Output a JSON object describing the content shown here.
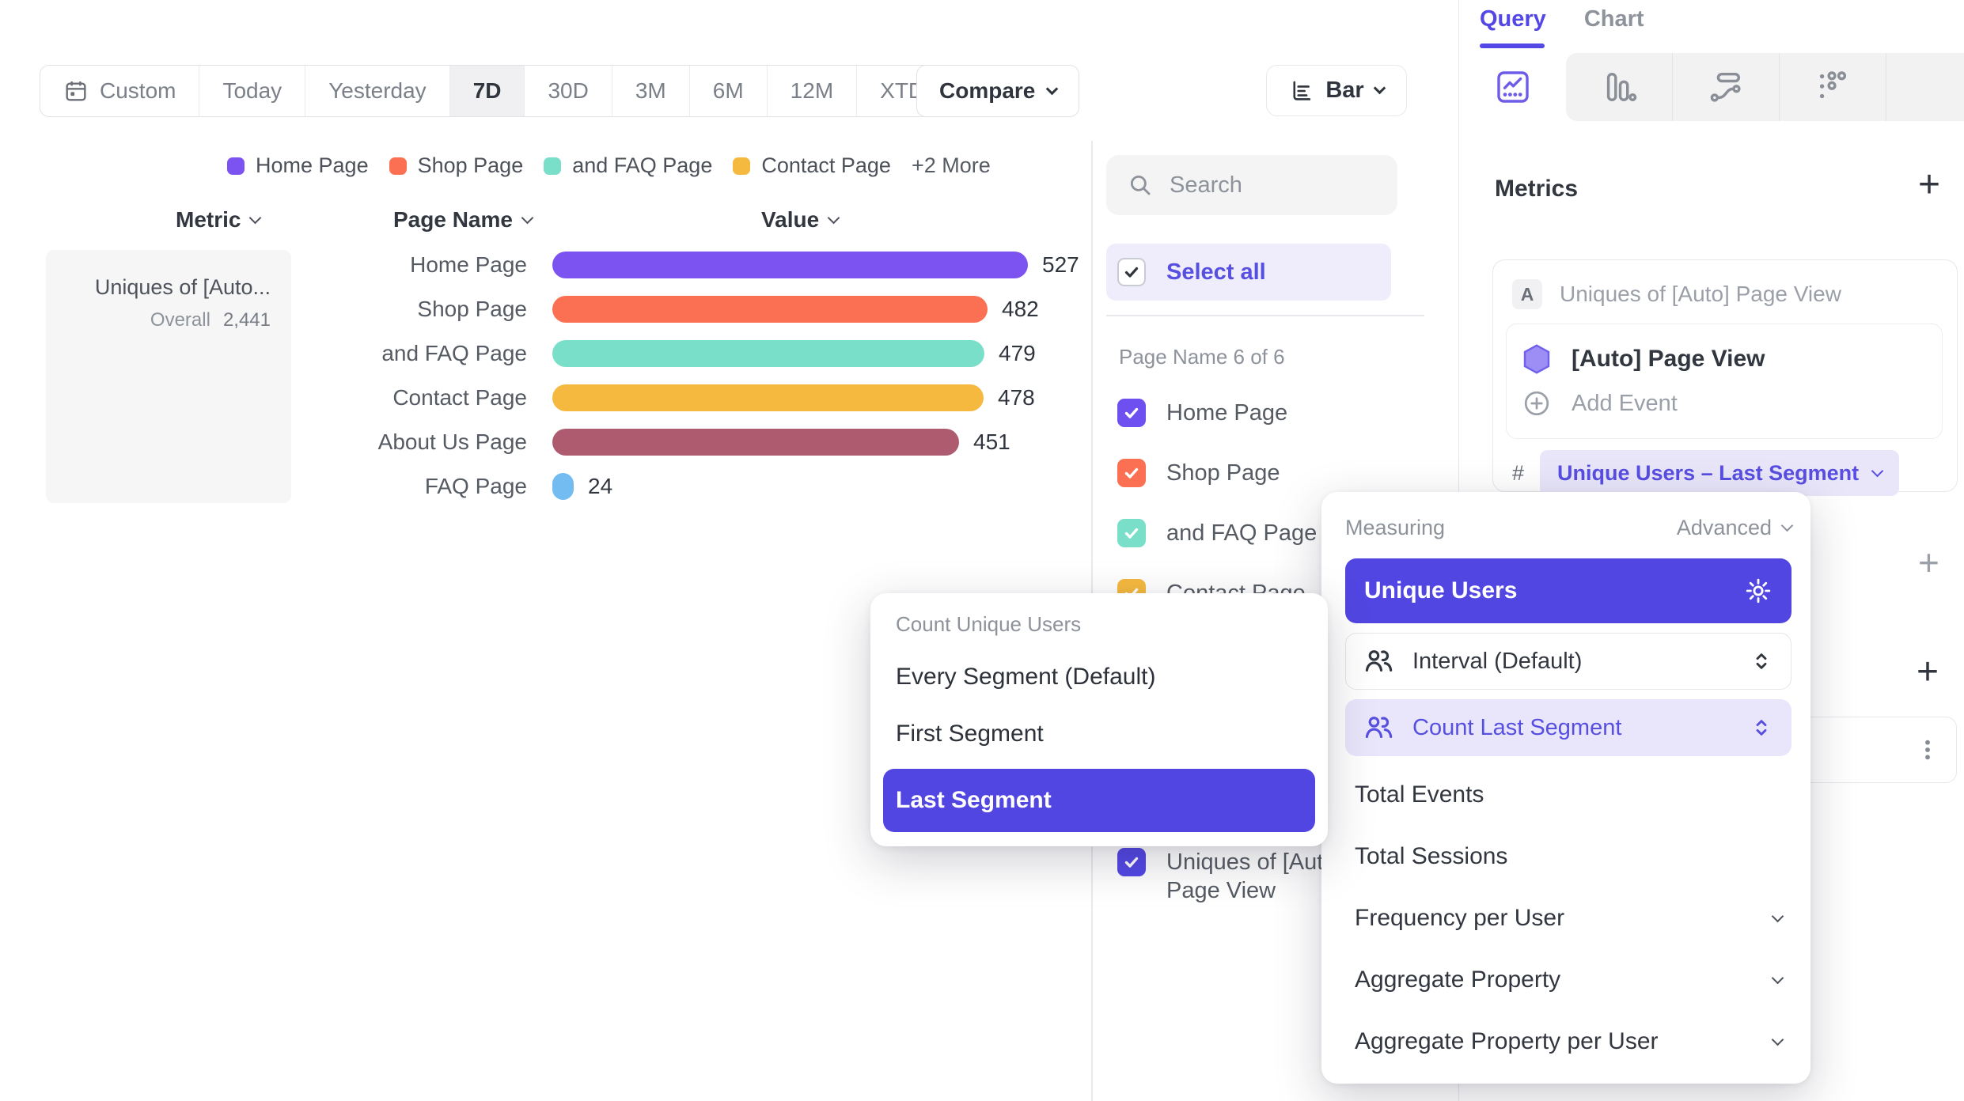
{
  "toolbar": {
    "date_ranges": [
      "Custom",
      "Today",
      "Yesterday",
      "7D",
      "30D",
      "3M",
      "6M",
      "12M",
      "XTD"
    ],
    "selected_range": "7D",
    "compare_label": "Compare",
    "chart_type_label": "Bar"
  },
  "legend": {
    "items": [
      {
        "label": "Home Page",
        "color": "#7C53F1"
      },
      {
        "label": "Shop Page",
        "color": "#FB7053"
      },
      {
        "label": "and FAQ Page",
        "color": "#79DFC9"
      },
      {
        "label": "Contact Page",
        "color": "#F5B93F"
      }
    ],
    "more_label": "+2 More"
  },
  "chart_data": {
    "type": "bar",
    "title": "Uniques of [Auto] Page View",
    "columns": {
      "metric": "Metric",
      "category": "Page Name",
      "value": "Value"
    },
    "metric_name": "Uniques of [Auto...",
    "overall_label": "Overall",
    "overall_value": "2,441",
    "categories": [
      "Home Page",
      "Shop Page",
      "and FAQ Page",
      "Contact Page",
      "About Us Page",
      "FAQ Page"
    ],
    "values": [
      527,
      482,
      479,
      478,
      451,
      24
    ],
    "colors": [
      "#7C53F1",
      "#FB7053",
      "#79DFC9",
      "#F5B93F",
      "#AE5B70",
      "#72BCF1"
    ],
    "max_value": 527,
    "xlabel": "Value",
    "ylabel": "Page Name"
  },
  "filter_panel": {
    "search_placeholder": "Search",
    "select_all_label": "Select all",
    "count_label": "Page Name 6 of 6",
    "items": [
      {
        "label": "Home Page",
        "color": "#6E50F0",
        "checked": true
      },
      {
        "label": "Shop Page",
        "color": "#FB7053",
        "checked": true
      },
      {
        "label": "and FAQ Page",
        "color": "#79DFC9",
        "checked": true
      },
      {
        "label": "Contact Page",
        "color": "#F5B93F",
        "checked": true
      },
      {
        "label": "About Us Page",
        "color": "#AE5B70",
        "checked": true
      },
      {
        "label": "FAQ Page",
        "color": "#72BCF1",
        "checked": true
      }
    ],
    "extra_item": {
      "label": "Uniques of [Auto] Page View",
      "color": "#5347E5",
      "checked": true
    }
  },
  "segment_popup": {
    "title": "Count Unique Users",
    "options": [
      "Every Segment (Default)",
      "First Segment",
      "Last Segment"
    ],
    "selected": "Last Segment"
  },
  "sidebar": {
    "tabs": [
      "Query",
      "Chart"
    ],
    "active_tab": "Query",
    "report_tabs": [
      "insights",
      "funnels",
      "flows",
      "retention"
    ],
    "metrics": {
      "heading": "Metrics",
      "add_label": "+",
      "series_letter": "A",
      "series_name": "Uniques of [Auto] Page View",
      "event_name": "[Auto] Page View",
      "add_event_label": "Add Event",
      "hash_symbol": "#",
      "measurement_pill": "Unique Users – Last Segment"
    },
    "filters_add_label": "+",
    "breakdowns_add_label": "+"
  },
  "measuring_menu": {
    "title": "Measuring",
    "advanced_label": "Advanced",
    "selected_option": "Unique Users",
    "sub_options": [
      {
        "label": "Interval (Default)",
        "selected": false
      },
      {
        "label": "Count Last Segment",
        "selected": true
      }
    ],
    "options": [
      {
        "label": "Total Events",
        "expandable": false
      },
      {
        "label": "Total Sessions",
        "expandable": false
      },
      {
        "label": "Frequency per User",
        "expandable": true
      },
      {
        "label": "Aggregate Property",
        "expandable": true
      },
      {
        "label": "Aggregate Property per User",
        "expandable": true
      }
    ]
  },
  "colors": {
    "accent": "#5246E2",
    "accent_text": "#574FE0",
    "accent_light_bg": "#E9E6FB",
    "text_gray": "#8D929B"
  }
}
